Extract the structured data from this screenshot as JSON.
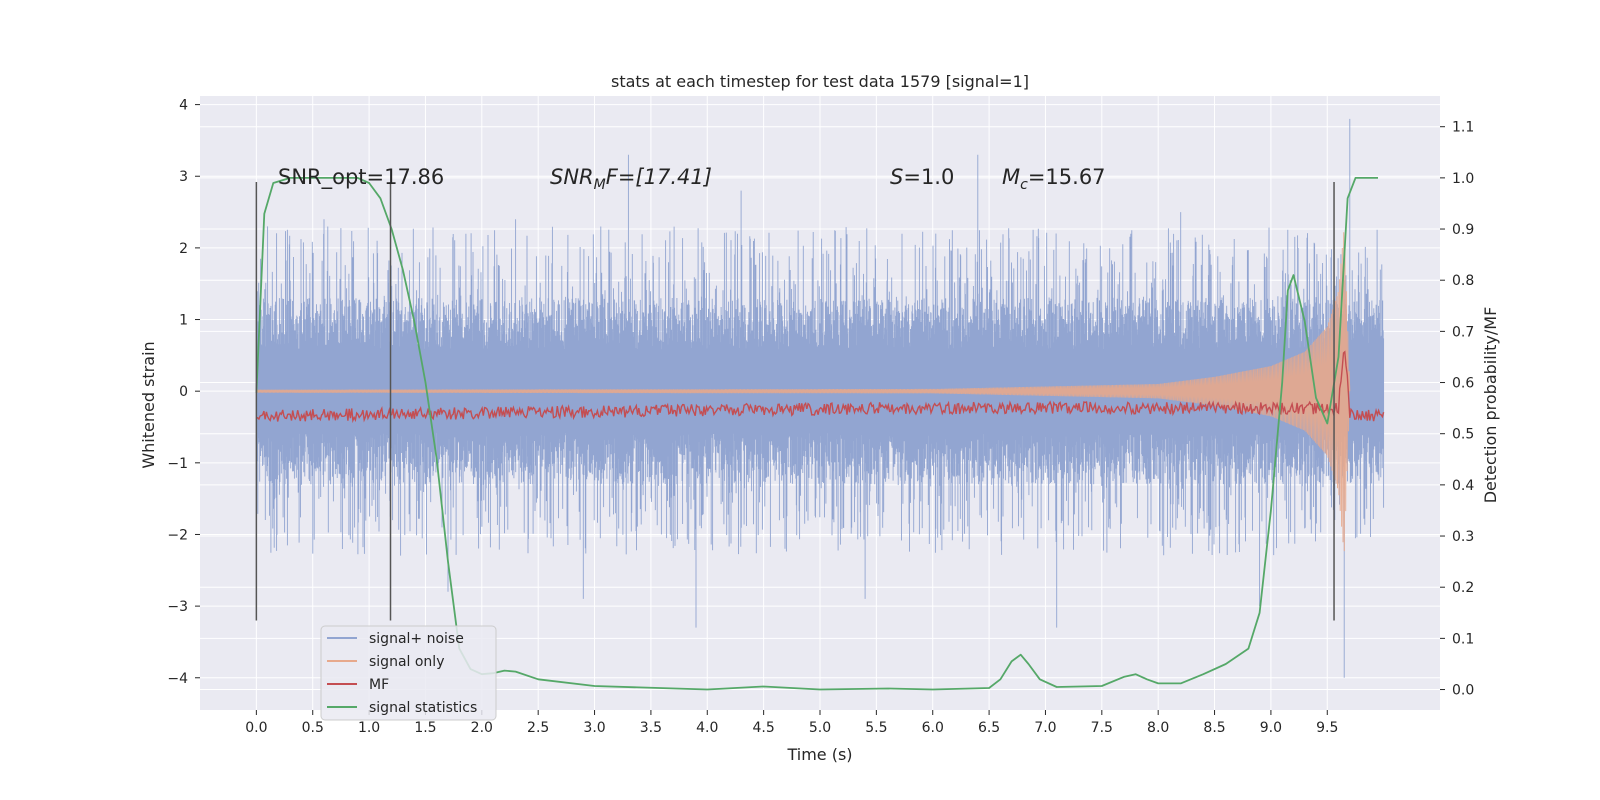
{
  "chart_data": {
    "type": "line",
    "title": "stats at each timestep for test data 1579 [signal=1]",
    "xlabel": "Time (s)",
    "ylabel": "Whitened strain",
    "ylabel_right": "Detection probability/MF",
    "xlim": [
      -0.5,
      10.5
    ],
    "ylim": [
      -4.45,
      4.12
    ],
    "ylim_right": [
      -0.04,
      1.16
    ],
    "grid": true,
    "legend_position": "lower-left",
    "x_ticks": [
      "0.0",
      "0.5",
      "1.0",
      "1.5",
      "2.0",
      "2.5",
      "3.0",
      "3.5",
      "4.0",
      "4.5",
      "5.0",
      "5.5",
      "6.0",
      "6.5",
      "7.0",
      "7.5",
      "8.0",
      "8.5",
      "9.0",
      "9.5"
    ],
    "y_ticks": [
      "−4",
      "−3",
      "−2",
      "−1",
      "0",
      "1",
      "2",
      "3",
      "4"
    ],
    "y_ticks_right": [
      "0.0",
      "0.1",
      "0.2",
      "0.3",
      "0.4",
      "0.5",
      "0.6",
      "0.7",
      "0.8",
      "0.9",
      "1.0",
      "1.1"
    ],
    "vertical_markers": [
      0.0,
      1.19,
      9.56
    ],
    "annotations": {
      "snr_opt": "SNR_opt=17.86",
      "snr_mf_main": "SNR",
      "snr_mf_sub": "M",
      "snr_mf_rest": "F=[17.41]",
      "s_main": "S",
      "s_rest": "=1.0",
      "mc_main": "M",
      "mc_sub": "c",
      "mc_rest": "=15.67"
    },
    "series": [
      {
        "name": "signal+ noise",
        "color": "#92a5d1",
        "axis": "left",
        "x_range": [
          0.0,
          10.0
        ],
        "typical_envelope": [
          -1.3,
          1.3
        ],
        "peaks": [
          [
            0.1,
            2.3
          ],
          [
            0.6,
            2.4
          ],
          [
            1.7,
            -2.8
          ],
          [
            2.3,
            2.4
          ],
          [
            2.9,
            -2.9
          ],
          [
            3.3,
            3.3
          ],
          [
            3.9,
            -3.3
          ],
          [
            4.3,
            2.8
          ],
          [
            5.4,
            -2.9
          ],
          [
            6.4,
            3.3
          ],
          [
            7.1,
            -3.3
          ],
          [
            8.2,
            2.5
          ],
          [
            8.9,
            -3.0
          ],
          [
            9.7,
            3.8
          ],
          [
            9.65,
            -4.0
          ]
        ]
      },
      {
        "name": "signal only",
        "color": "#e7a98c",
        "axis": "left",
        "x_range": [
          0.0,
          9.7
        ],
        "points": [
          [
            0.0,
            0.02
          ],
          [
            6.0,
            0.03
          ],
          [
            8.0,
            0.1
          ],
          [
            8.5,
            0.2
          ],
          [
            9.0,
            0.35
          ],
          [
            9.3,
            0.55
          ],
          [
            9.5,
            0.9
          ],
          [
            9.6,
            1.4
          ],
          [
            9.65,
            2.3
          ],
          [
            9.7,
            0.0
          ]
        ]
      },
      {
        "name": "MF",
        "color": "#c44e52",
        "axis": "right",
        "x_range": [
          0.0,
          10.0
        ],
        "baseline": 0.535,
        "jitter": 0.012,
        "points": [
          [
            0.0,
            0.535
          ],
          [
            5.6,
            0.55
          ],
          [
            9.6,
            0.55
          ],
          [
            9.65,
            0.68
          ],
          [
            9.7,
            0.54
          ],
          [
            10.0,
            0.535
          ]
        ]
      },
      {
        "name": "signal statistics",
        "color": "#55a868",
        "axis": "right",
        "x_range": [
          0.0,
          9.95
        ],
        "points": [
          [
            0.0,
            0.58
          ],
          [
            0.07,
            0.93
          ],
          [
            0.15,
            0.99
          ],
          [
            0.3,
            1.0
          ],
          [
            0.9,
            1.0
          ],
          [
            1.0,
            0.99
          ],
          [
            1.1,
            0.96
          ],
          [
            1.2,
            0.9
          ],
          [
            1.3,
            0.82
          ],
          [
            1.4,
            0.72
          ],
          [
            1.5,
            0.6
          ],
          [
            1.6,
            0.45
          ],
          [
            1.7,
            0.25
          ],
          [
            1.8,
            0.08
          ],
          [
            1.9,
            0.04
          ],
          [
            2.0,
            0.03
          ],
          [
            2.1,
            0.032
          ],
          [
            2.2,
            0.037
          ],
          [
            2.3,
            0.035
          ],
          [
            2.5,
            0.02
          ],
          [
            3.0,
            0.007
          ],
          [
            4.0,
            0.0
          ],
          [
            4.5,
            0.006
          ],
          [
            5.0,
            0.0
          ],
          [
            5.6,
            0.002
          ],
          [
            6.0,
            0.0
          ],
          [
            6.5,
            0.003
          ],
          [
            6.6,
            0.02
          ],
          [
            6.7,
            0.055
          ],
          [
            6.78,
            0.068
          ],
          [
            6.85,
            0.05
          ],
          [
            6.95,
            0.02
          ],
          [
            7.1,
            0.005
          ],
          [
            7.5,
            0.007
          ],
          [
            7.7,
            0.025
          ],
          [
            7.8,
            0.03
          ],
          [
            7.9,
            0.02
          ],
          [
            8.0,
            0.012
          ],
          [
            8.2,
            0.012
          ],
          [
            8.4,
            0.03
          ],
          [
            8.6,
            0.05
          ],
          [
            8.8,
            0.08
          ],
          [
            8.9,
            0.15
          ],
          [
            9.0,
            0.35
          ],
          [
            9.1,
            0.6
          ],
          [
            9.15,
            0.78
          ],
          [
            9.2,
            0.81
          ],
          [
            9.3,
            0.72
          ],
          [
            9.4,
            0.57
          ],
          [
            9.5,
            0.52
          ],
          [
            9.6,
            0.65
          ],
          [
            9.68,
            0.96
          ],
          [
            9.75,
            1.0
          ],
          [
            9.95,
            1.0
          ]
        ]
      }
    ]
  }
}
